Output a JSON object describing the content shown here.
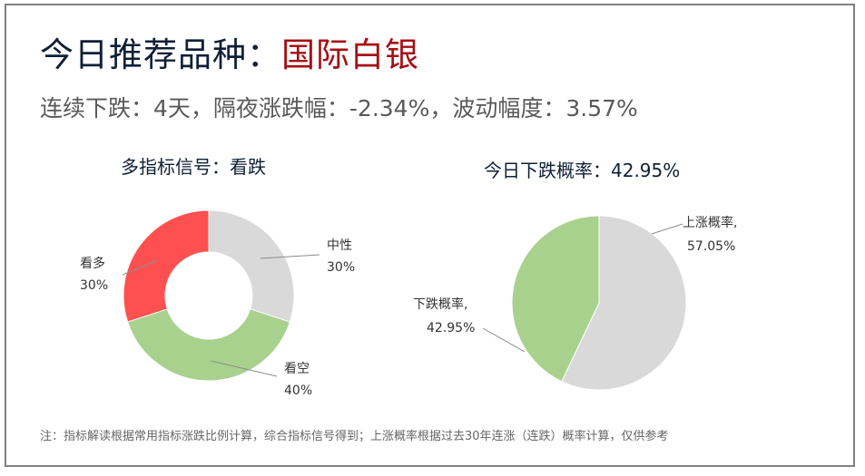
{
  "header": {
    "title_prefix": "今日推荐品种：",
    "title_highlight": "国际白银",
    "subtitle": "连续下跌：4天，隔夜涨跌幅：-2.34%，波动幅度：3.57%"
  },
  "footnote": "注：指标解读根据常用指标涨跌比例计算，综合指标信号得到；上涨概率根据过去30年连涨（连跌）概率计算，仅供参考",
  "colors": {
    "red": "#fe5050",
    "green": "#a9d18e",
    "grey": "#d9d9d9",
    "title_highlight": "#a50f15"
  },
  "chart_data": [
    {
      "type": "pie",
      "variant": "donut",
      "title": "多指标信号：看跌",
      "slices": [
        {
          "label": "中性",
          "value": 30,
          "display": "30%",
          "color": "#d9d9d9"
        },
        {
          "label": "看空",
          "value": 40,
          "display": "40%",
          "color": "#a9d18e"
        },
        {
          "label": "看多",
          "value": 30,
          "display": "30%",
          "color": "#fe5050"
        }
      ]
    },
    {
      "type": "pie",
      "title": "今日下跌概率：42.95%",
      "slices": [
        {
          "label": "上涨概率,",
          "value": 57.05,
          "display": "57.05%",
          "color": "#d9d9d9"
        },
        {
          "label": "下跌概率,",
          "value": 42.95,
          "display": "42.95%",
          "color": "#a9d18e"
        }
      ]
    }
  ]
}
